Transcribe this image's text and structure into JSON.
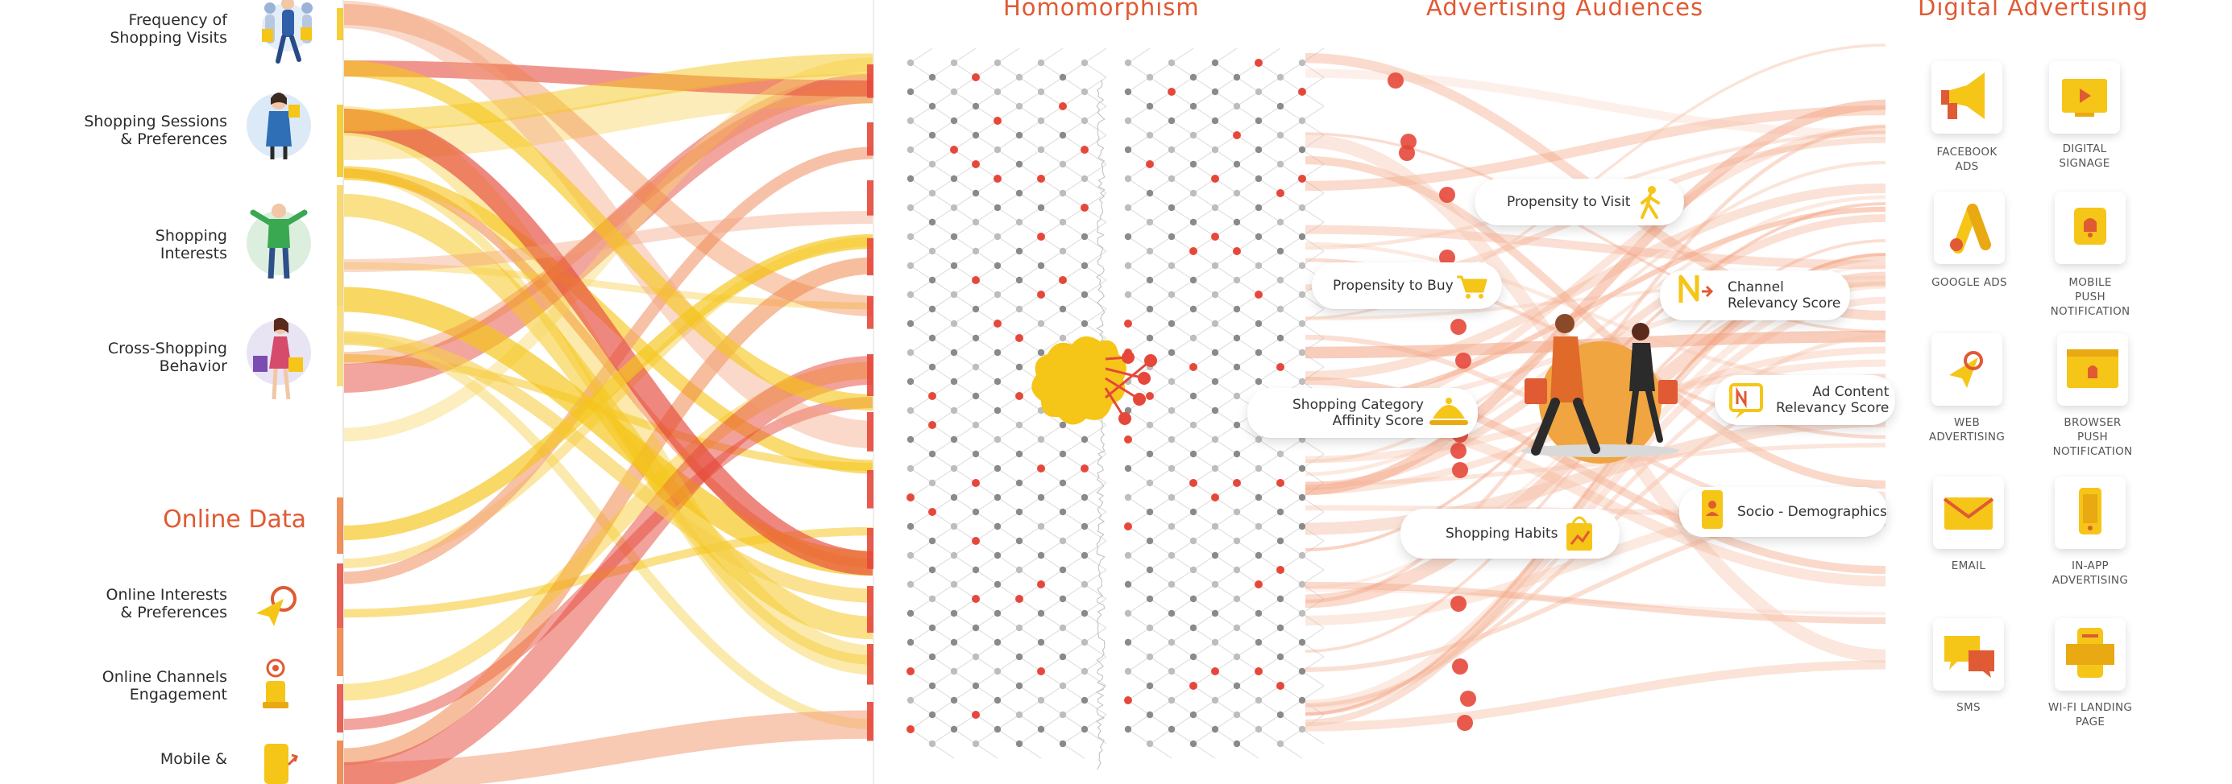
{
  "sections": {
    "homomorphism": "Homomorphism",
    "advertising_audiences": "Advertising Audiences",
    "digital_advertising": "Digital Advertising"
  },
  "offline_inputs": [
    {
      "label": "Frequency of\nShopping Visits",
      "icon": "shoppers-walking-icon"
    },
    {
      "label": "Shopping Sessions\n& Preferences",
      "icon": "woman-shopper-icon"
    },
    {
      "label": "Shopping\nInterests",
      "icon": "man-shopper-icon"
    },
    {
      "label": "Cross-Shopping\nBehavior",
      "icon": "woman-bags-icon"
    }
  ],
  "online_data": {
    "title": "Online Data",
    "items": [
      {
        "label": "Online Interests\n& Preferences",
        "icon": "cursor-click-icon"
      },
      {
        "label": "Online Channels\nEngagement",
        "icon": "touch-icon"
      },
      {
        "label": "Mobile &",
        "icon": "mobile-icon"
      }
    ]
  },
  "audiences": [
    {
      "label": "Propensity to Visit",
      "icon": "walking-person-icon"
    },
    {
      "label": "Propensity to Buy",
      "icon": "cart-icon"
    },
    {
      "label": "Channel\nRelevancy Score",
      "icon": "channel-n-icon"
    },
    {
      "label": "Shopping Category\nAffinity Score",
      "icon": "cloche-icon"
    },
    {
      "label": "Ad Content\nRelevancy Score",
      "icon": "ad-content-icon"
    },
    {
      "label": "Socio - Demographics",
      "icon": "id-card-icon"
    },
    {
      "label": "Shopping Habits",
      "icon": "shopping-bag-icon"
    }
  ],
  "channels": [
    {
      "label": "FACEBOOK\nADS",
      "icon": "megaphone-icon"
    },
    {
      "label": "DIGITAL\nSIGNAGE",
      "icon": "signage-icon"
    },
    {
      "label": "GOOGLE ADS",
      "icon": "google-ads-icon"
    },
    {
      "label": "MOBILE\nPUSH\nNOTIFICATION",
      "icon": "bell-icon"
    },
    {
      "label": "WEB\nADVERTISING",
      "icon": "web-cursor-icon"
    },
    {
      "label": "BROWSER\nPUSH\nNOTIFICATION",
      "icon": "browser-bell-icon"
    },
    {
      "label": "EMAIL",
      "icon": "envelope-icon"
    },
    {
      "label": "IN-APP\nADVERTISING",
      "icon": "phone-icon"
    },
    {
      "label": "SMS",
      "icon": "chat-bubbles-icon"
    },
    {
      "label": "WI-FI LANDING\nPAGE",
      "icon": "wifi-page-icon"
    }
  ],
  "colors": {
    "accent": "#e05a33",
    "yellow": "#f5c518",
    "orange": "#ef7d3c",
    "red": "#e5483a"
  }
}
